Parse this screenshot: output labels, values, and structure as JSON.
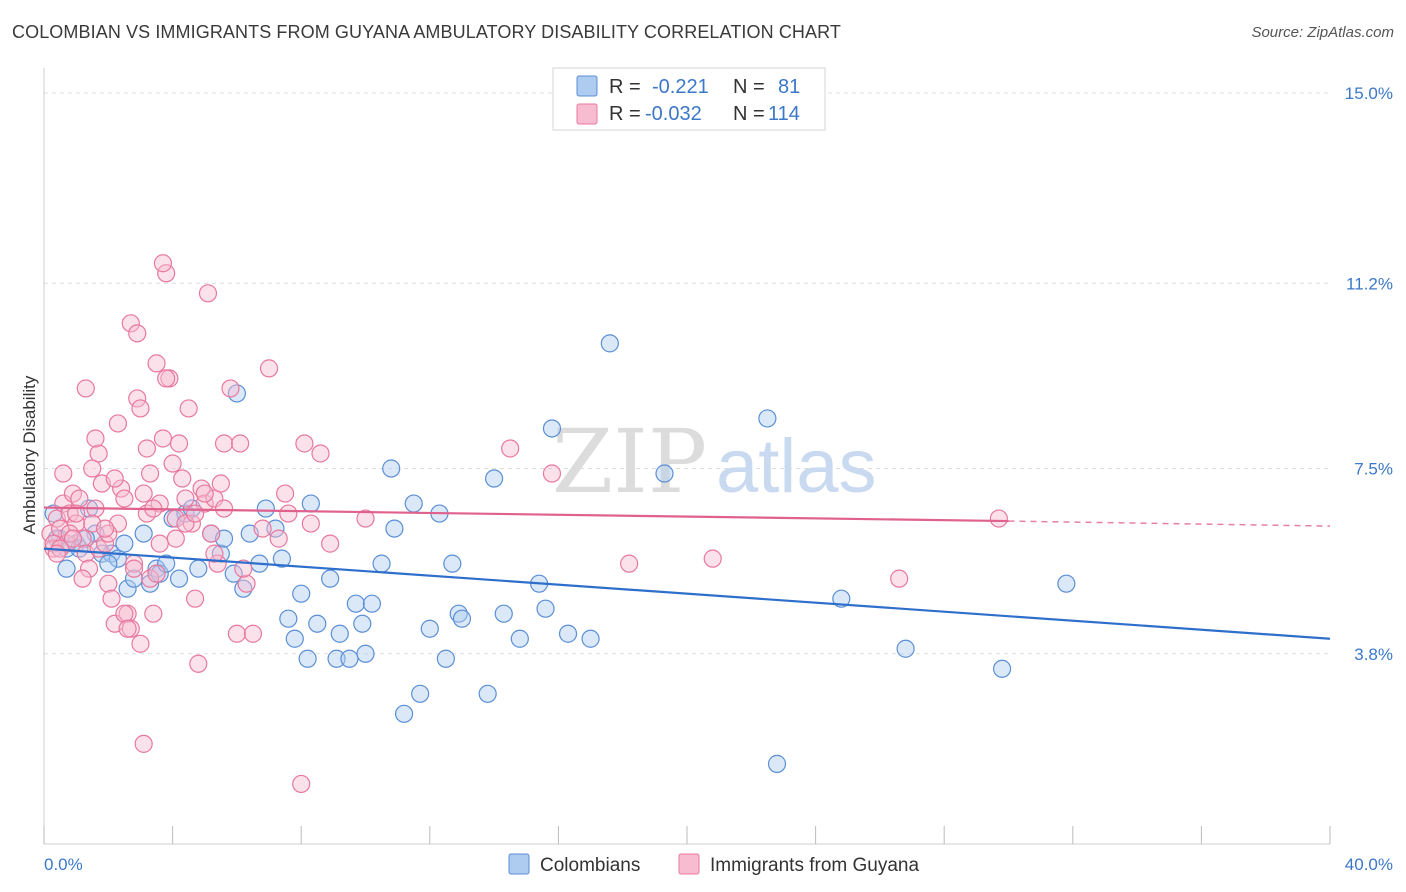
{
  "header": {
    "title": "COLOMBIAN VS IMMIGRANTS FROM GUYANA AMBULATORY DISABILITY CORRELATION CHART",
    "source": "Source: ZipAtlas.com"
  },
  "watermark": {
    "zip": "ZIP",
    "atlas": "atlas"
  },
  "colors": {
    "blue_fill": "#aecbf0",
    "blue_stroke": "#5b8fd6",
    "blue_line": "#2f6fcc",
    "pink_fill": "#f7bcd0",
    "pink_stroke": "#e8789e",
    "pink_line": "#e0608e",
    "grid": "#dcdcdc",
    "tick_text": "#3b78c8"
  },
  "legend": {
    "rows": [
      {
        "r_label": "R =",
        "r_value": "-0.221",
        "n_label": "N =",
        "n_value": "81"
      },
      {
        "r_label": "R =",
        "r_value": "-0.032",
        "n_label": "N =",
        "n_value": "114"
      }
    ]
  },
  "chart_data": {
    "type": "scatter",
    "title": "COLOMBIAN VS IMMIGRANTS FROM GUYANA AMBULATORY DISABILITY CORRELATION CHART",
    "xlabel": "",
    "ylabel": "Ambulatory Disability",
    "xlim": [
      0,
      40
    ],
    "ylim": [
      0,
      15.5
    ],
    "x_tick_labels": [
      "0.0%",
      "40.0%"
    ],
    "y_ticks": [
      3.8,
      7.5,
      11.2,
      15.0
    ],
    "y_tick_labels": [
      "3.8%",
      "7.5%",
      "11.2%",
      "15.0%"
    ],
    "grid": true,
    "legend_position": "top-center",
    "series": [
      {
        "name": "Colombians",
        "color": "#aecbf0",
        "r": -0.221,
        "n": 81,
        "trend": {
          "x": [
            0,
            40
          ],
          "y": [
            5.9,
            4.1
          ]
        },
        "points": [
          [
            0.3,
            6.6
          ],
          [
            0.5,
            6.1
          ],
          [
            0.7,
            5.9
          ],
          [
            0.7,
            5.5
          ],
          [
            1.0,
            6.0
          ],
          [
            1.1,
            5.9
          ],
          [
            1.4,
            6.7
          ],
          [
            1.6,
            6.2
          ],
          [
            1.8,
            5.8
          ],
          [
            2.1,
            5.8
          ],
          [
            2.3,
            5.7
          ],
          [
            2.5,
            6.0
          ],
          [
            2.6,
            5.1
          ],
          [
            2.8,
            5.3
          ],
          [
            3.1,
            6.2
          ],
          [
            3.3,
            5.2
          ],
          [
            3.5,
            5.5
          ],
          [
            3.6,
            5.4
          ],
          [
            3.8,
            5.6
          ],
          [
            4.2,
            5.3
          ],
          [
            4.0,
            6.5
          ],
          [
            4.4,
            6.6
          ],
          [
            4.6,
            6.7
          ],
          [
            4.8,
            5.5
          ],
          [
            5.2,
            6.2
          ],
          [
            5.5,
            5.8
          ],
          [
            5.6,
            6.1
          ],
          [
            5.9,
            5.4
          ],
          [
            6.0,
            9.0
          ],
          [
            6.2,
            5.1
          ],
          [
            6.4,
            6.2
          ],
          [
            6.7,
            5.6
          ],
          [
            6.9,
            6.7
          ],
          [
            7.2,
            6.3
          ],
          [
            7.4,
            5.7
          ],
          [
            7.6,
            4.5
          ],
          [
            7.8,
            4.1
          ],
          [
            8.0,
            5.0
          ],
          [
            8.2,
            3.7
          ],
          [
            8.3,
            6.8
          ],
          [
            8.5,
            4.4
          ],
          [
            8.9,
            5.3
          ],
          [
            9.1,
            3.7
          ],
          [
            9.2,
            4.2
          ],
          [
            9.5,
            3.7
          ],
          [
            9.7,
            4.8
          ],
          [
            9.9,
            4.4
          ],
          [
            10.0,
            3.8
          ],
          [
            10.2,
            4.8
          ],
          [
            10.5,
            5.6
          ],
          [
            10.8,
            7.5
          ],
          [
            10.9,
            6.3
          ],
          [
            11.2,
            2.6
          ],
          [
            11.5,
            6.8
          ],
          [
            11.7,
            3.0
          ],
          [
            12.0,
            4.3
          ],
          [
            12.3,
            6.6
          ],
          [
            12.5,
            3.7
          ],
          [
            12.7,
            5.6
          ],
          [
            12.9,
            4.6
          ],
          [
            13.0,
            4.5
          ],
          [
            13.8,
            3.0
          ],
          [
            14.0,
            7.3
          ],
          [
            14.3,
            4.6
          ],
          [
            14.8,
            4.1
          ],
          [
            15.4,
            5.2
          ],
          [
            15.6,
            4.7
          ],
          [
            15.8,
            8.3
          ],
          [
            16.3,
            4.2
          ],
          [
            17.0,
            4.1
          ],
          [
            17.6,
            10.0
          ],
          [
            19.3,
            7.4
          ],
          [
            22.5,
            8.5
          ],
          [
            22.8,
            1.6
          ],
          [
            24.8,
            4.9
          ],
          [
            26.8,
            3.9
          ],
          [
            29.8,
            3.5
          ],
          [
            31.8,
            5.2
          ],
          [
            0.4,
            6.1
          ],
          [
            1.3,
            6.1
          ],
          [
            2.0,
            5.6
          ]
        ]
      },
      {
        "name": "Immigrants from Guyana",
        "color": "#f7bcd0",
        "r": -0.032,
        "n": 114,
        "trend": {
          "x": [
            0,
            30
          ],
          "y": [
            6.72,
            6.45
          ],
          "dashed_to": [
            40,
            6.35
          ]
        },
        "points": [
          [
            0.2,
            6.2
          ],
          [
            0.3,
            5.9
          ],
          [
            0.4,
            6.5
          ],
          [
            0.5,
            6.3
          ],
          [
            0.6,
            6.8
          ],
          [
            0.7,
            6.0
          ],
          [
            0.8,
            6.6
          ],
          [
            0.9,
            7.0
          ],
          [
            1.0,
            6.4
          ],
          [
            1.1,
            6.9
          ],
          [
            1.2,
            6.1
          ],
          [
            1.3,
            5.8
          ],
          [
            1.4,
            5.5
          ],
          [
            1.5,
            7.5
          ],
          [
            1.6,
            6.7
          ],
          [
            1.7,
            5.9
          ],
          [
            1.8,
            7.2
          ],
          [
            1.9,
            6.0
          ],
          [
            2.0,
            5.2
          ],
          [
            2.1,
            4.9
          ],
          [
            2.2,
            4.4
          ],
          [
            2.3,
            6.4
          ],
          [
            2.4,
            7.1
          ],
          [
            2.5,
            6.9
          ],
          [
            2.6,
            4.6
          ],
          [
            2.7,
            4.3
          ],
          [
            2.8,
            5.6
          ],
          [
            2.9,
            8.9
          ],
          [
            3.0,
            8.7
          ],
          [
            3.1,
            7.0
          ],
          [
            3.2,
            6.6
          ],
          [
            3.3,
            7.4
          ],
          [
            3.4,
            4.6
          ],
          [
            3.5,
            9.6
          ],
          [
            3.6,
            6.8
          ],
          [
            3.7,
            8.1
          ],
          [
            3.8,
            11.4
          ],
          [
            3.9,
            9.3
          ],
          [
            4.0,
            7.6
          ],
          [
            4.1,
            6.5
          ],
          [
            4.2,
            8.0
          ],
          [
            4.3,
            7.3
          ],
          [
            4.4,
            6.9
          ],
          [
            4.5,
            8.7
          ],
          [
            4.6,
            6.4
          ],
          [
            4.7,
            4.9
          ],
          [
            4.8,
            3.6
          ],
          [
            4.9,
            7.1
          ],
          [
            5.0,
            6.8
          ],
          [
            5.1,
            11.0
          ],
          [
            5.2,
            6.2
          ],
          [
            5.3,
            6.9
          ],
          [
            5.4,
            5.6
          ],
          [
            5.5,
            7.2
          ],
          [
            5.6,
            8.0
          ],
          [
            5.8,
            9.1
          ],
          [
            6.0,
            4.2
          ],
          [
            6.1,
            8.0
          ],
          [
            6.3,
            5.2
          ],
          [
            6.5,
            4.2
          ],
          [
            6.8,
            6.3
          ],
          [
            7.0,
            9.5
          ],
          [
            7.3,
            6.1
          ],
          [
            7.5,
            7.0
          ],
          [
            7.6,
            6.6
          ],
          [
            8.1,
            8.0
          ],
          [
            8.3,
            6.4
          ],
          [
            8.6,
            7.8
          ],
          [
            8.9,
            6.0
          ],
          [
            8.0,
            1.2
          ],
          [
            10.0,
            6.5
          ],
          [
            14.5,
            7.9
          ],
          [
            15.8,
            7.4
          ],
          [
            18.2,
            5.6
          ],
          [
            20.8,
            5.7
          ],
          [
            26.6,
            5.3
          ],
          [
            29.7,
            6.5
          ],
          [
            0.3,
            6.0
          ],
          [
            0.5,
            5.9
          ],
          [
            0.8,
            6.2
          ],
          [
            1.0,
            6.6
          ],
          [
            1.2,
            5.3
          ],
          [
            1.5,
            6.4
          ],
          [
            1.7,
            7.8
          ],
          [
            2.0,
            6.2
          ],
          [
            2.3,
            8.4
          ],
          [
            2.5,
            4.6
          ],
          [
            2.7,
            10.4
          ],
          [
            2.9,
            10.2
          ],
          [
            3.1,
            2.0
          ],
          [
            3.3,
            5.3
          ],
          [
            3.5,
            5.4
          ],
          [
            3.7,
            11.6
          ],
          [
            0.6,
            7.4
          ],
          [
            0.9,
            6.1
          ],
          [
            1.3,
            9.1
          ],
          [
            1.6,
            8.1
          ],
          [
            1.9,
            6.3
          ],
          [
            2.2,
            7.3
          ],
          [
            2.6,
            4.3
          ],
          [
            2.8,
            5.5
          ],
          [
            3.0,
            4.0
          ],
          [
            3.2,
            7.9
          ],
          [
            3.4,
            6.7
          ],
          [
            3.6,
            6.0
          ],
          [
            3.8,
            9.3
          ],
          [
            4.1,
            6.1
          ],
          [
            4.4,
            6.4
          ],
          [
            4.7,
            6.6
          ],
          [
            5.0,
            7.0
          ],
          [
            5.3,
            5.8
          ],
          [
            5.6,
            6.7
          ],
          [
            6.2,
            5.5
          ],
          [
            0.4,
            5.8
          ]
        ]
      }
    ]
  }
}
